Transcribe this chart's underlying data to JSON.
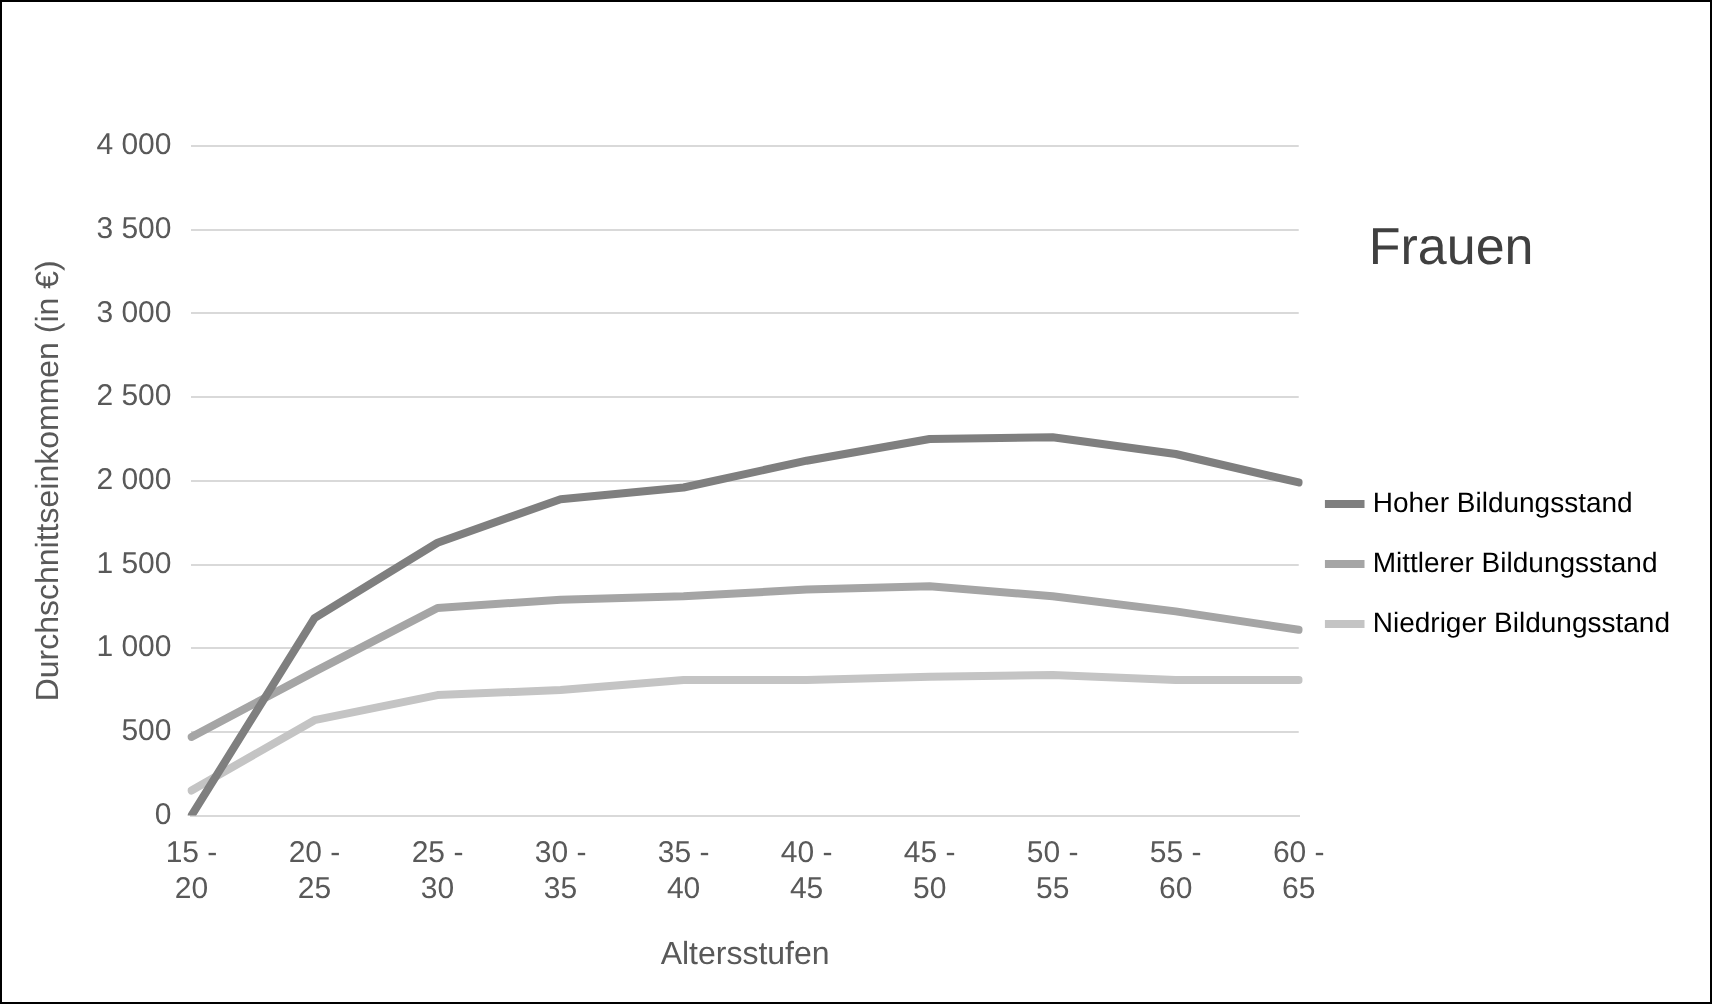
{
  "chart_data": {
    "type": "line",
    "title": "Frauen",
    "xlabel": "Altersstufen",
    "ylabel": "Durchschnittseinkommen (in €)",
    "categories": [
      "15 - 20",
      "20 - 25",
      "25 - 30",
      "30 - 35",
      "35 - 40",
      "40 - 45",
      "45 - 50",
      "50 - 55",
      "55 - 60",
      "60 - 65"
    ],
    "series": [
      {
        "name": "Hoher Bildungsstand",
        "color": "#7f7f7f",
        "values": [
          0,
          1180,
          1630,
          1890,
          1960,
          2120,
          2250,
          2260,
          2160,
          1990
        ]
      },
      {
        "name": "Mittlerer Bildungsstand",
        "color": "#a5a5a5",
        "values": [
          470,
          860,
          1240,
          1290,
          1310,
          1350,
          1370,
          1310,
          1220,
          1110
        ]
      },
      {
        "name": "Niedriger Bildungsstand",
        "color": "#c4c4c4",
        "values": [
          150,
          570,
          720,
          750,
          810,
          810,
          830,
          840,
          810,
          810
        ]
      }
    ],
    "ylim": [
      0,
      4000
    ],
    "yticks": [
      {
        "value": 0,
        "label": "0"
      },
      {
        "value": 500,
        "label": "500"
      },
      {
        "value": 1000,
        "label": "1 000"
      },
      {
        "value": 1500,
        "label": "1 500"
      },
      {
        "value": 2000,
        "label": "2 000"
      },
      {
        "value": 2500,
        "label": "2 500"
      },
      {
        "value": 3000,
        "label": "3 000"
      },
      {
        "value": 3500,
        "label": "3 500"
      },
      {
        "value": 4000,
        "label": "4 000"
      }
    ],
    "grid": "y",
    "legend": "right",
    "marker": "none",
    "line_style": "solid"
  }
}
